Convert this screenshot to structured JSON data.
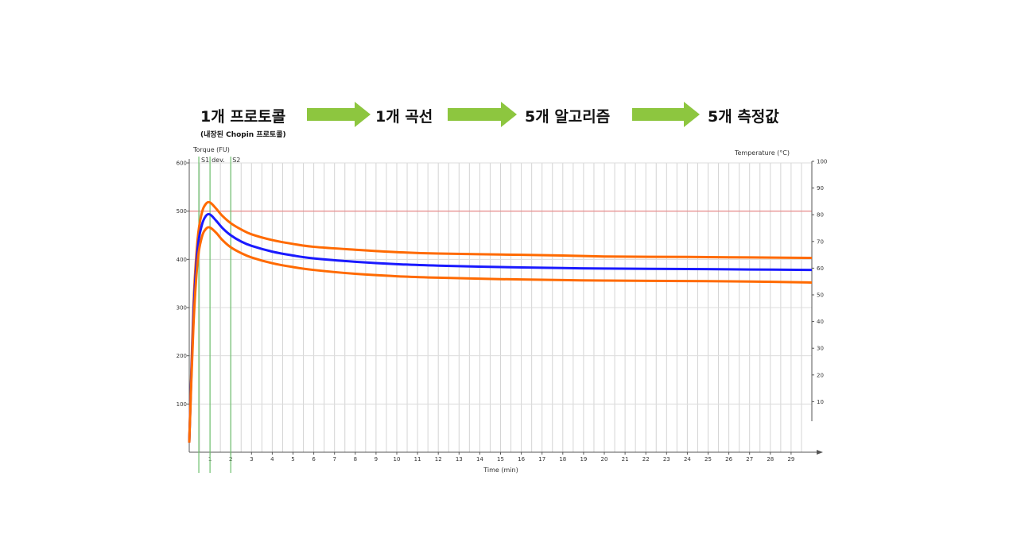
{
  "flow": {
    "step1": "1개 프로토콜",
    "step1_sub": "(내장된 Chopin 프로토콜)",
    "step2": "1개 곡선",
    "step3": "5개 알고리즘",
    "step4": "5개 측정값",
    "arrow_color": "#8dc63f"
  },
  "chart_data": {
    "type": "line",
    "xlabel": "Time (min)",
    "ylabel": "Torque (FU)",
    "y2label": "Temperature (°C)",
    "xlim": [
      0,
      30
    ],
    "ylim": [
      0,
      600
    ],
    "y2lim": [
      0,
      100
    ],
    "x_ticks": [
      1,
      2,
      3,
      4,
      5,
      6,
      7,
      8,
      9,
      10,
      11,
      12,
      13,
      14,
      15,
      16,
      17,
      18,
      19,
      20,
      21,
      22,
      23,
      24,
      25,
      26,
      27,
      28,
      29
    ],
    "y_ticks": [
      100,
      200,
      300,
      400,
      500,
      600
    ],
    "y_tick_labels": [
      "100",
      "200",
      "300",
      "400",
      "500",
      "600"
    ],
    "y2_ticks": [
      10,
      20,
      30,
      40,
      50,
      60,
      70,
      80,
      90,
      100
    ],
    "grid": true,
    "markers": [
      {
        "name": "S1",
        "x": 0.5
      },
      {
        "name": "dev.",
        "x": 1.0
      },
      {
        "name": "S2",
        "x": 2.0
      }
    ],
    "reference_line": {
      "y": 500,
      "color": "#e88080"
    },
    "series": [
      {
        "color": "#ff6a00",
        "x": [
          0,
          0.2,
          0.4,
          0.6,
          0.8,
          1.0,
          1.3,
          1.6,
          2.0,
          2.5,
          3,
          4,
          5,
          6,
          8,
          10,
          12,
          15,
          18,
          20,
          24,
          27,
          30
        ],
        "y": [
          20,
          300,
          440,
          495,
          515,
          518,
          505,
          490,
          475,
          462,
          452,
          440,
          432,
          426,
          420,
          415,
          412,
          410,
          408,
          406,
          405,
          404,
          403
        ]
      },
      {
        "color": "#1a1aff",
        "x": [
          0,
          0.2,
          0.4,
          0.6,
          0.8,
          1.0,
          1.3,
          1.6,
          2.0,
          2.5,
          3,
          4,
          5,
          6,
          8,
          10,
          12,
          15,
          18,
          20,
          24,
          27,
          30
        ],
        "y": [
          20,
          280,
          420,
          470,
          490,
          493,
          480,
          465,
          450,
          437,
          428,
          416,
          408,
          402,
          395,
          390,
          387,
          384,
          382,
          381,
          380,
          379,
          378
        ]
      },
      {
        "color": "#ff6a00",
        "x": [
          0,
          0.2,
          0.4,
          0.6,
          0.8,
          1.0,
          1.3,
          1.6,
          2.0,
          2.5,
          3,
          4,
          5,
          6,
          8,
          10,
          12,
          15,
          18,
          20,
          24,
          27,
          30
        ],
        "y": [
          20,
          260,
          395,
          445,
          463,
          466,
          455,
          440,
          425,
          413,
          404,
          392,
          384,
          378,
          370,
          365,
          362,
          359,
          357,
          356,
          355,
          354,
          352
        ]
      }
    ]
  }
}
